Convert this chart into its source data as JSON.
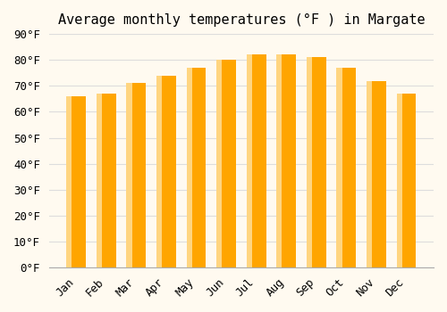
{
  "title": "Average monthly temperatures (°F ) in Margate",
  "months": [
    "Jan",
    "Feb",
    "Mar",
    "Apr",
    "May",
    "Jun",
    "Jul",
    "Aug",
    "Sep",
    "Oct",
    "Nov",
    "Dec"
  ],
  "values": [
    66,
    67,
    71,
    74,
    77,
    80,
    82,
    82,
    81,
    77,
    72,
    67
  ],
  "bar_color_main": "#FFA500",
  "bar_color_light": "#FFD580",
  "background_color": "#FFFAF0",
  "ylim": [
    0,
    90
  ],
  "yticks": [
    0,
    10,
    20,
    30,
    40,
    50,
    60,
    70,
    80,
    90
  ],
  "grid_color": "#dddddd",
  "title_fontsize": 11,
  "tick_fontsize": 9
}
